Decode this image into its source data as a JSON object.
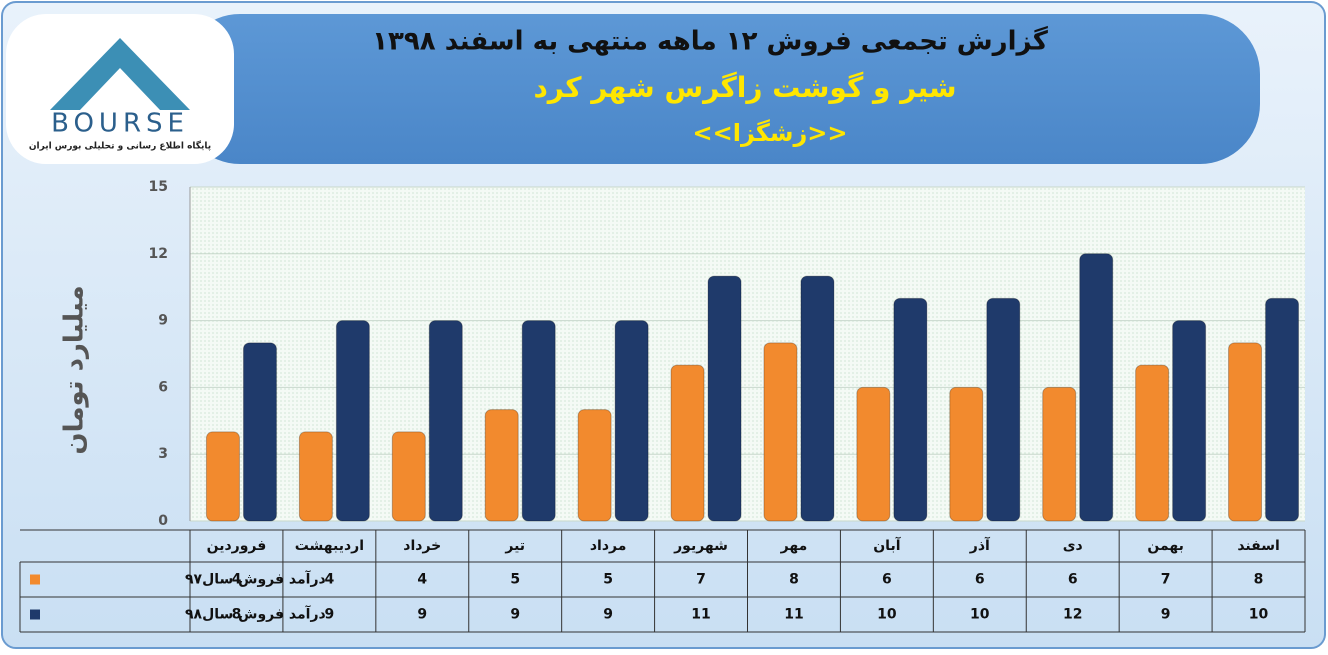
{
  "logo": {
    "name": "BOURSE",
    "tagline": "پایگاه اطلاع رسانی و تحلیلی بورس ایران"
  },
  "chart_data": {
    "type": "bar",
    "title": "گزارش تجمعی فروش  ۱۲ ماهه منتهی به اسفند ۱۳۹۸",
    "subtitle": "شیر و گوشت زاگرس شهر کرد",
    "symbol": "<<زشگزا>>",
    "y_label": "میلیارد تومان",
    "categories": [
      "فروردین",
      "اردیبهشت",
      "خرداد",
      "تیر",
      "مرداد",
      "شهریور",
      "مهر",
      "آبان",
      "آذر",
      "دی",
      "بهمن",
      "اسفند"
    ],
    "series": [
      {
        "name": "درآمد فروش سال۹۷",
        "color": "#f28a2e",
        "values": [
          4,
          4,
          4,
          5,
          5,
          7,
          8,
          6,
          6,
          6,
          7,
          8
        ]
      },
      {
        "name": "درآمد فروش سال۹۸",
        "color": "#1f3a6b",
        "values": [
          8,
          9,
          9,
          9,
          9,
          11,
          11,
          10,
          10,
          12,
          9,
          10
        ]
      }
    ],
    "ylim": [
      0,
      15
    ],
    "yticks": [
      0,
      3,
      6,
      9,
      12,
      15
    ],
    "grid": true
  }
}
